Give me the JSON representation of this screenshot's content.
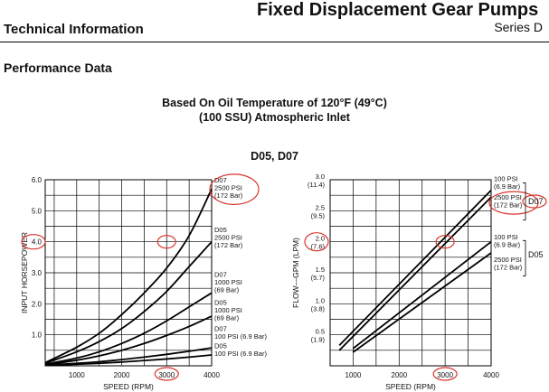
{
  "header": {
    "title": "Fixed Displacement Gear Pumps",
    "series": "Series D",
    "left": "Technical Information"
  },
  "section_title": "Performance Data",
  "subtitle_line1": "Based On Oil Temperature of 120°F (49°C)",
  "subtitle_line2": "(100 SSU) Atmospheric Inlet",
  "figure_title": "D05, D07",
  "highlight_color": "#d9342b",
  "chart_data": [
    {
      "type": "line",
      "ylabel": "INPUT HORSEPOWER",
      "xlabel": "SPEED (RPM)",
      "xlim": [
        300,
        4000
      ],
      "ylim": [
        0,
        6
      ],
      "xticks": [
        "1000",
        "2000",
        "3000",
        "4000"
      ],
      "yticks": [
        "1.0",
        "2.0",
        "3.0",
        "4.0",
        "5.0",
        "6.0"
      ],
      "grid": true,
      "series": [
        {
          "x": [
            300,
            1000,
            1500,
            2000,
            2500,
            3000,
            3500,
            4000
          ],
          "y": [
            0.1,
            0.6,
            1.05,
            1.65,
            2.35,
            3.15,
            4.2,
            5.7
          ]
        },
        {
          "x": [
            300,
            1000,
            1500,
            2000,
            2500,
            3000,
            3500,
            4000
          ],
          "y": [
            0.08,
            0.45,
            0.78,
            1.2,
            1.75,
            2.4,
            3.2,
            4.0
          ]
        },
        {
          "x": [
            300,
            1000,
            1500,
            2000,
            2500,
            3000,
            3500,
            4000
          ],
          "y": [
            0.05,
            0.25,
            0.45,
            0.72,
            1.05,
            1.45,
            1.9,
            2.35
          ]
        },
        {
          "x": [
            300,
            1000,
            1500,
            2000,
            2500,
            3000,
            3500,
            4000
          ],
          "y": [
            0.03,
            0.18,
            0.32,
            0.5,
            0.72,
            0.98,
            1.27,
            1.6
          ]
        },
        {
          "x": [
            300,
            1000,
            1500,
            2000,
            2500,
            3000,
            3500,
            4000
          ],
          "y": [
            0.02,
            0.08,
            0.13,
            0.2,
            0.28,
            0.37,
            0.47,
            0.58
          ]
        },
        {
          "x": [
            300,
            1000,
            1500,
            2000,
            2500,
            3000,
            3500,
            4000
          ],
          "y": [
            0.01,
            0.05,
            0.08,
            0.12,
            0.17,
            0.22,
            0.28,
            0.35
          ]
        }
      ],
      "annotations": [
        {
          "lines": [
            "D07",
            "2500 PSI",
            "(172 Bar)"
          ],
          "y": 5.8,
          "circled": true
        },
        {
          "lines": [
            "D05",
            "2500 PSI",
            "(172 Bar)"
          ],
          "y": 4.2
        },
        {
          "lines": [
            "D07",
            "1000 PSI",
            "(69 Bar)"
          ],
          "y": 2.75
        },
        {
          "lines": [
            "D05",
            "1000 PSI",
            "(69 Bar)"
          ],
          "y": 1.85
        },
        {
          "lines": [
            "D07",
            "100 PSI (6.9 Bar)"
          ],
          "y": 1.0
        },
        {
          "lines": [
            "D05",
            "100 PSI (6.9 Bar)"
          ],
          "y": 0.45
        }
      ],
      "circled_marks": [
        "4.0",
        "3000"
      ]
    },
    {
      "type": "line",
      "ylabel": "FLOW—GPM (LPM)",
      "xlabel": "SPEED (RPM)",
      "xlim": [
        500,
        4000
      ],
      "ylim": [
        0,
        3
      ],
      "xticks": [
        "1000",
        "2000",
        "3000",
        "4000"
      ],
      "yticks": [
        "0.5\n(1.9)",
        "1.0\n(3.8)",
        "1.5\n(5.7)",
        "2.0\n(7.6)",
        "2.5\n(9.5)",
        "3.0\n(11.4)"
      ],
      "grid": true,
      "series": [
        {
          "x": [
            700,
            4000
          ],
          "y": [
            0.33,
            2.83
          ]
        },
        {
          "x": [
            700,
            4000
          ],
          "y": [
            0.25,
            2.72
          ]
        },
        {
          "x": [
            1000,
            4000
          ],
          "y": [
            0.28,
            2.0
          ]
        },
        {
          "x": [
            1000,
            4000
          ],
          "y": [
            0.22,
            1.82
          ]
        }
      ],
      "annotations": [
        {
          "lines": [
            "100 PSI",
            "(6.9 Bar)"
          ],
          "y": 2.92
        },
        {
          "lines": [
            "2500 PSI",
            "(172 Bar)"
          ],
          "y": 2.62,
          "circled": true
        },
        {
          "lines": [
            "100 PSI",
            "(6.9 Bar)"
          ],
          "y": 1.98
        },
        {
          "lines": [
            "2500 PSI",
            "(172 Bar)"
          ],
          "y": 1.62
        }
      ],
      "group_labels": [
        "D07",
        "D05"
      ],
      "circled_marks": [
        "2.0 (7.6)",
        "3000"
      ]
    }
  ]
}
